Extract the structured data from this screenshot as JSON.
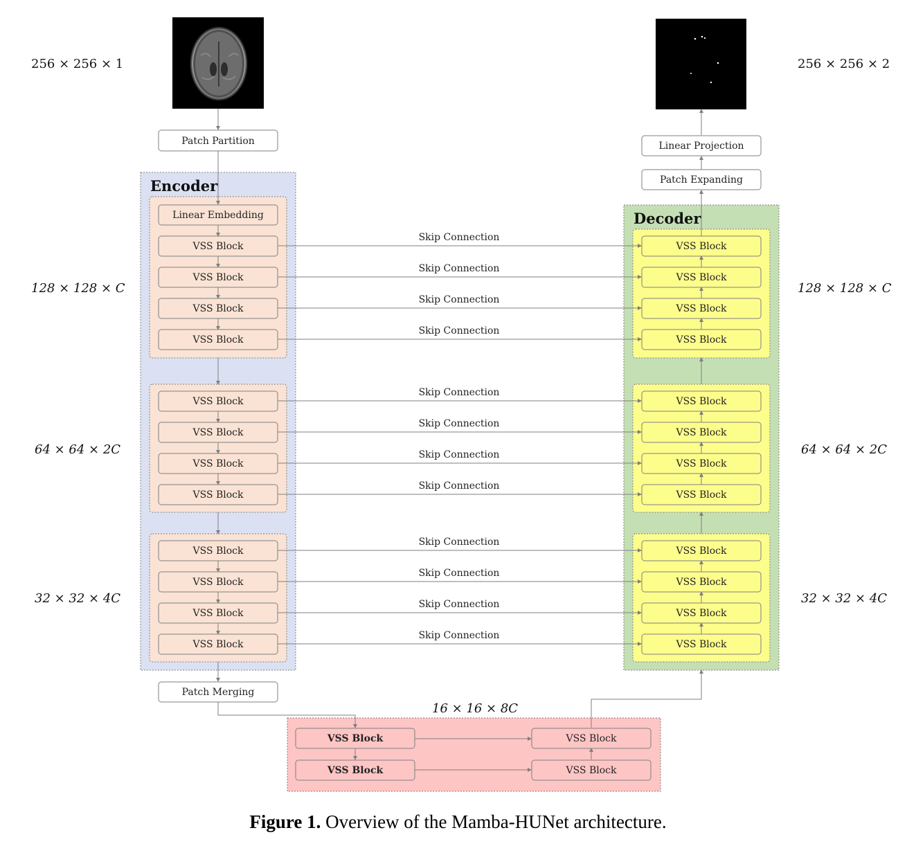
{
  "dims": {
    "input": "256 × 256 × 1",
    "output": "256 × 256 × 2",
    "stage1_left": "128 × 128 × C",
    "stage1_right": "128 × 128 × C",
    "stage2_left": "64 × 64 × 2C",
    "stage2_right": "64 × 64 × 2C",
    "stage3_left": "32 × 32 × 4C",
    "stage3_right": "32 × 32 × 4C",
    "bottleneck": "16 × 16 × 8C"
  },
  "labels": {
    "patch_partition": "Patch Partition",
    "linear_embedding": "Linear Embedding",
    "patch_merging": "Patch Merging",
    "linear_projection": "Linear Projection",
    "patch_expanding": "Patch Expanding",
    "vss_block": "VSS Block",
    "skip_connection": "Skip Connection",
    "encoder": "Encoder",
    "decoder": "Decoder"
  },
  "colors": {
    "encoder_bg": "#dbe1f3",
    "decoder_bg": "#c5dfb4",
    "encoder_stage_bg": "#fae3d4",
    "decoder_stage_bg": "#fdfd8c",
    "bottleneck_bg": "#fec5c5",
    "line": "#7f7f7f"
  },
  "caption": {
    "label": "Figure 1.",
    "text": "Overview of the Mamba-HUNet architecture."
  }
}
